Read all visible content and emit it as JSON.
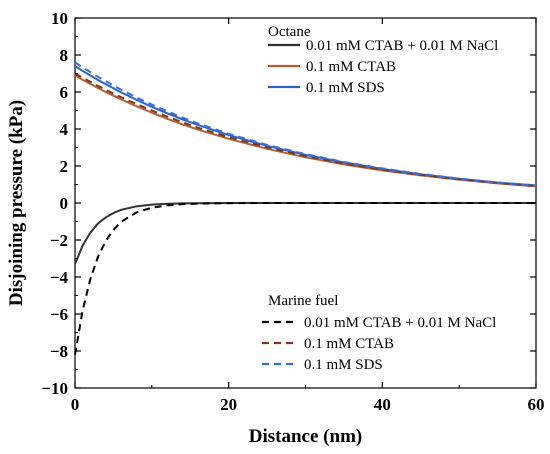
{
  "chart_data": {
    "type": "line",
    "xlabel": "Distance (nm)",
    "ylabel": "Disjoining pressure (kPa)",
    "xlim": [
      0,
      60
    ],
    "ylim": [
      -10,
      10
    ],
    "x_ticks": [
      0,
      20,
      40,
      60
    ],
    "x_tick_labels": [
      "0",
      "20",
      "40",
      "60"
    ],
    "y_ticks": [
      -10,
      -8,
      -6,
      -4,
      -2,
      0,
      2,
      4,
      6,
      8,
      10
    ],
    "y_tick_labels": [
      "−10",
      "−8",
      "−6",
      "−4",
      "−2",
      "0",
      "2",
      "4",
      "6",
      "8",
      "10"
    ],
    "grid": false,
    "x": [
      0,
      1,
      2,
      3,
      4,
      5,
      6,
      8,
      10,
      12,
      14,
      16,
      20,
      25,
      30,
      35,
      40,
      45,
      50,
      55,
      60
    ],
    "legends": [
      {
        "title": "Octane",
        "placement": "top-right",
        "entries": [
          {
            "name": "0.01 mM CTAB + 0.01 M NaCl",
            "color": "#333333",
            "dash": "solid"
          },
          {
            "name": "0.1 mM CTAB",
            "color": "#b5603a",
            "dash": "solid"
          },
          {
            "name": "0.1 mM SDS",
            "color": "#2a63c8",
            "dash": "solid"
          }
        ]
      },
      {
        "title": "Marine fuel",
        "placement": "bottom-right",
        "entries": [
          {
            "name": "0.01 mM CTAB + 0.01 M NaCl",
            "color": "#000000",
            "dash": "dashed"
          },
          {
            "name": "0.1 mM CTAB",
            "color": "#7a3a20",
            "dash": "dashed"
          },
          {
            "name": "0.1 mM SDS",
            "color": "#3b6fd8",
            "dash": "dashed"
          }
        ]
      }
    ],
    "series": [
      {
        "group": "Octane",
        "name": "0.01 mM CTAB + 0.01 M NaCl",
        "color": "#333333",
        "dash": "solid",
        "values": [
          -3.3,
          -2.3,
          -1.6,
          -1.1,
          -0.78,
          -0.54,
          -0.37,
          -0.18,
          -0.09,
          -0.04,
          -0.02,
          -0.01,
          0,
          0,
          0,
          0,
          0,
          0,
          0,
          0,
          0
        ]
      },
      {
        "group": "Octane",
        "name": "0.1 mM CTAB",
        "color": "#b5603a",
        "dash": "solid",
        "values": [
          6.9,
          6.66,
          6.43,
          6.21,
          6.0,
          5.8,
          5.6,
          5.23,
          4.88,
          4.55,
          4.25,
          3.97,
          3.47,
          2.93,
          2.47,
          2.09,
          1.76,
          1.49,
          1.26,
          1.06,
          0.9
        ]
      },
      {
        "group": "Octane",
        "name": "0.1 mM SDS",
        "color": "#2a63c8",
        "dash": "solid",
        "values": [
          7.4,
          7.14,
          6.89,
          6.65,
          6.42,
          6.2,
          5.98,
          5.58,
          5.2,
          4.85,
          4.52,
          4.22,
          3.67,
          3.09,
          2.6,
          2.19,
          1.84,
          1.55,
          1.31,
          1.1,
          0.95
        ]
      },
      {
        "group": "Marine fuel",
        "name": "0.01 mM CTAB + 0.01 M NaCl",
        "color": "#000000",
        "dash": "dashed",
        "values": [
          -8.2,
          -5.8,
          -4.1,
          -2.9,
          -2.05,
          -1.45,
          -1.02,
          -0.51,
          -0.25,
          -0.13,
          -0.06,
          -0.03,
          -0.01,
          0,
          0,
          0,
          0,
          0,
          0,
          0,
          0
        ]
      },
      {
        "group": "Marine fuel",
        "name": "0.1 mM CTAB",
        "color": "#7a3a20",
        "dash": "dashed",
        "values": [
          7.0,
          6.77,
          6.55,
          6.33,
          6.12,
          5.92,
          5.72,
          5.35,
          5.0,
          4.67,
          4.36,
          4.07,
          3.56,
          3.0,
          2.53,
          2.13,
          1.8,
          1.52,
          1.28,
          1.08,
          0.92
        ]
      },
      {
        "group": "Marine fuel",
        "name": "0.1 mM SDS",
        "color": "#3b6fd8",
        "dash": "dashed",
        "values": [
          7.6,
          7.33,
          7.07,
          6.82,
          6.58,
          6.35,
          6.13,
          5.71,
          5.32,
          4.96,
          4.62,
          4.3,
          3.74,
          3.14,
          2.64,
          2.22,
          1.87,
          1.57,
          1.32,
          1.11,
          0.95
        ]
      }
    ]
  }
}
